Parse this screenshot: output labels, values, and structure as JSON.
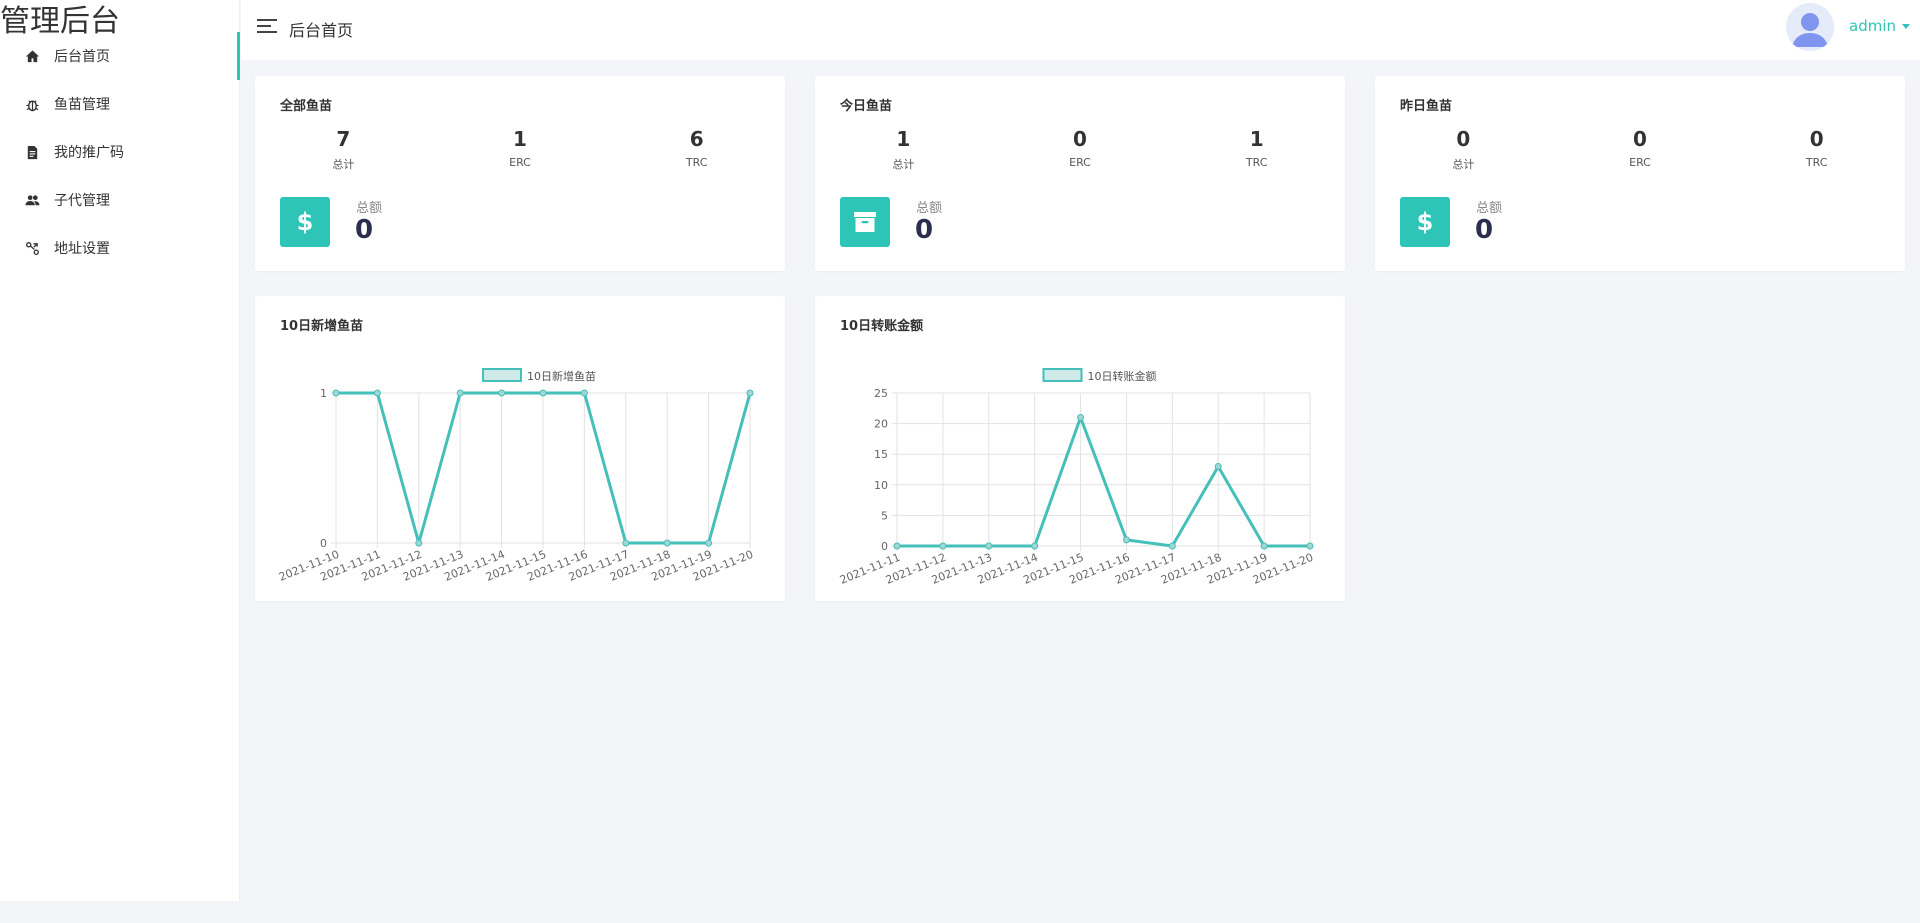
{
  "app": {
    "brand": "管理后台"
  },
  "sidebar": {
    "items": [
      {
        "label": "后台首页",
        "icon": "home-icon"
      },
      {
        "label": "鱼苗管理",
        "icon": "bug-icon"
      },
      {
        "label": "我的推广码",
        "icon": "document-icon"
      },
      {
        "label": "子代管理",
        "icon": "users-icon"
      },
      {
        "label": "地址设置",
        "icon": "route-icon"
      }
    ]
  },
  "header": {
    "title": "后台首页",
    "username": "admin"
  },
  "colors": {
    "accent": "#2ec4b6",
    "line": "#45bfba",
    "navy": "#2b2f4d"
  },
  "stat_cards": [
    {
      "title": "全部鱼苗",
      "stats": [
        {
          "value": "7",
          "label": "总计"
        },
        {
          "value": "1",
          "label": "ERC"
        },
        {
          "value": "6",
          "label": "TRC"
        }
      ],
      "sum_label": "总额",
      "sum_value": "0",
      "icon": "dollar-icon",
      "icon_glyph": "$"
    },
    {
      "title": "今日鱼苗",
      "stats": [
        {
          "value": "1",
          "label": "总计"
        },
        {
          "value": "0",
          "label": "ERC"
        },
        {
          "value": "1",
          "label": "TRC"
        }
      ],
      "sum_label": "总额",
      "sum_value": "0",
      "icon": "archive-icon",
      "icon_glyph": ""
    },
    {
      "title": "昨日鱼苗",
      "stats": [
        {
          "value": "0",
          "label": "总计"
        },
        {
          "value": "0",
          "label": "ERC"
        },
        {
          "value": "0",
          "label": "TRC"
        }
      ],
      "sum_label": "总额",
      "sum_value": "0",
      "icon": "dollar-icon",
      "icon_glyph": "$"
    }
  ],
  "chart_cards": [
    {
      "title": "10日新增鱼苗"
    },
    {
      "title": "10日转账金额"
    }
  ],
  "chart_data": [
    {
      "type": "line",
      "title": "10日新增鱼苗",
      "x": [
        "2021-11-10",
        "2021-11-11",
        "2021-11-12",
        "2021-11-13",
        "2021-11-14",
        "2021-11-15",
        "2021-11-16",
        "2021-11-17",
        "2021-11-18",
        "2021-11-19",
        "2021-11-20"
      ],
      "series": [
        {
          "name": "10日新增鱼苗",
          "values": [
            1,
            1,
            0,
            1,
            1,
            1,
            1,
            0,
            0,
            0,
            1
          ]
        }
      ],
      "yticks": [
        0,
        1
      ],
      "ylim": [
        0,
        1
      ],
      "legend": "top-center",
      "grid": true
    },
    {
      "type": "line",
      "title": "10日转账金额",
      "x": [
        "2021-11-11",
        "2021-11-12",
        "2021-11-13",
        "2021-11-14",
        "2021-11-15",
        "2021-11-16",
        "2021-11-17",
        "2021-11-18",
        "2021-11-19",
        "2021-11-20"
      ],
      "series": [
        {
          "name": "10日转账金额",
          "values": [
            0,
            0,
            0,
            0,
            21,
            1,
            0,
            13,
            0,
            0
          ]
        }
      ],
      "yticks": [
        0,
        5,
        10,
        15,
        20,
        25
      ],
      "ylim": [
        0,
        25
      ],
      "legend": "top-center",
      "grid": true
    }
  ]
}
